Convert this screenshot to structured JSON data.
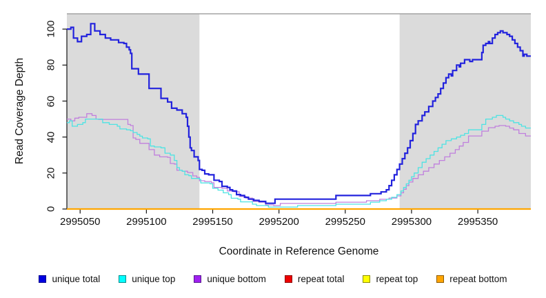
{
  "figure": {
    "background": "#ffffff"
  },
  "axes": {
    "y_title": "Read Coverage Depth",
    "x_title": "Coordinate in Reference Genome",
    "x_tick_values": [
      2995050,
      2995100,
      2995150,
      2995200,
      2995250,
      2995300,
      2995350
    ],
    "x_tick_labels": [
      "2995050",
      "2995100",
      "2995150",
      "2995200",
      "2995250",
      "2995300",
      "2995350"
    ],
    "y_tick_values": [
      0,
      20,
      40,
      60,
      80,
      100
    ],
    "y_tick_labels": [
      "0",
      "20",
      "40",
      "60",
      "80",
      "100"
    ],
    "axis_color": "#111111"
  },
  "chart_data": {
    "type": "line",
    "step": true,
    "title": "",
    "xlabel": "Coordinate in Reference Genome",
    "ylabel": "Read Coverage Depth",
    "xlim": [
      2995040,
      2995390
    ],
    "ylim": [
      0,
      108.5
    ],
    "grid": false,
    "legend_position": "bottom",
    "shaded_regions": [
      {
        "x1": 2995040,
        "x2": 2995140,
        "color": "#dbdbdb"
      },
      {
        "x1": 2995291,
        "x2": 2995390,
        "color": "#dbdbdb"
      }
    ],
    "top_border": {
      "y": 108.5,
      "color": "#a3a3a3",
      "width": 1.5
    },
    "series": [
      {
        "name": "unique total",
        "color": "#2222dd",
        "line_width": 2.2,
        "draw_order": 6,
        "points": [
          [
            2995040,
            100
          ],
          [
            2995043,
            101
          ],
          [
            2995045,
            95
          ],
          [
            2995048,
            93
          ],
          [
            2995051,
            96
          ],
          [
            2995055,
            97
          ],
          [
            2995058,
            103
          ],
          [
            2995061,
            99
          ],
          [
            2995065,
            97
          ],
          [
            2995069,
            95
          ],
          [
            2995073,
            94
          ],
          [
            2995077,
            94
          ],
          [
            2995079,
            92.5
          ],
          [
            2995083,
            92
          ],
          [
            2995085,
            90
          ],
          [
            2995087,
            88.5
          ],
          [
            2995088,
            86.5
          ],
          [
            2995089,
            78
          ],
          [
            2995094,
            75
          ],
          [
            2995102,
            67
          ],
          [
            2995111,
            61.5
          ],
          [
            2995116,
            59.5
          ],
          [
            2995119,
            56
          ],
          [
            2995123,
            55
          ],
          [
            2995127,
            53
          ],
          [
            2995130,
            51
          ],
          [
            2995131,
            46
          ],
          [
            2995132,
            40
          ],
          [
            2995133,
            34
          ],
          [
            2995134,
            32.5
          ],
          [
            2995136,
            29
          ],
          [
            2995139,
            27
          ],
          [
            2995140,
            22
          ],
          [
            2995142,
            21.5
          ],
          [
            2995144,
            19.5
          ],
          [
            2995147,
            19
          ],
          [
            2995151,
            16
          ],
          [
            2995155,
            15.3
          ],
          [
            2995157,
            12.6
          ],
          [
            2995161,
            12
          ],
          [
            2995163,
            10.7
          ],
          [
            2995165,
            10
          ],
          [
            2995168,
            8
          ],
          [
            2995171,
            7.5
          ],
          [
            2995174,
            6.5
          ],
          [
            2995177,
            5.5
          ],
          [
            2995181,
            4.8
          ],
          [
            2995185,
            4.2
          ],
          [
            2995190,
            3.2
          ],
          [
            2995197,
            5.5
          ],
          [
            2995243,
            7.5
          ],
          [
            2995269,
            8.5
          ],
          [
            2995277,
            9.5
          ],
          [
            2995281,
            10.7
          ],
          [
            2995283,
            13
          ],
          [
            2995285,
            16
          ],
          [
            2995287,
            19
          ],
          [
            2995289,
            22
          ],
          [
            2995291,
            25
          ],
          [
            2995293,
            28
          ],
          [
            2995295,
            31
          ],
          [
            2995297,
            34
          ],
          [
            2995299,
            38
          ],
          [
            2995301,
            42
          ],
          [
            2995303,
            47
          ],
          [
            2995305,
            49
          ],
          [
            2995308,
            52
          ],
          [
            2995310,
            54
          ],
          [
            2995313,
            57
          ],
          [
            2995316,
            60
          ],
          [
            2995318,
            62
          ],
          [
            2995320,
            64
          ],
          [
            2995322,
            67
          ],
          [
            2995324,
            70
          ],
          [
            2995326,
            73
          ],
          [
            2995328,
            75
          ],
          [
            2995330,
            74
          ],
          [
            2995331,
            77
          ],
          [
            2995334,
            80
          ],
          [
            2995336,
            79
          ],
          [
            2995337,
            81
          ],
          [
            2995340,
            83
          ],
          [
            2995343,
            83
          ],
          [
            2995344,
            82
          ],
          [
            2995346,
            83
          ],
          [
            2995353,
            87
          ],
          [
            2995354,
            91
          ],
          [
            2995356,
            92
          ],
          [
            2995358,
            93
          ],
          [
            2995359,
            92
          ],
          [
            2995361,
            95
          ],
          [
            2995363,
            97
          ],
          [
            2995365,
            98
          ],
          [
            2995367,
            99
          ],
          [
            2995369,
            98
          ],
          [
            2995372,
            97
          ],
          [
            2995374,
            96
          ],
          [
            2995376,
            94
          ],
          [
            2995378,
            92
          ],
          [
            2995380,
            90
          ],
          [
            2995382,
            88
          ],
          [
            2995384,
            85
          ],
          [
            2995385,
            86
          ],
          [
            2995387,
            85
          ],
          [
            2995390,
            85
          ]
        ]
      },
      {
        "name": "unique top",
        "color": "#4de3e3",
        "line_width": 1.3,
        "draw_order": 5,
        "points": [
          [
            2995040,
            48
          ],
          [
            2995042,
            49
          ],
          [
            2995044,
            46
          ],
          [
            2995048,
            47
          ],
          [
            2995052,
            48
          ],
          [
            2995054,
            50
          ],
          [
            2995065,
            50
          ],
          [
            2995067,
            48
          ],
          [
            2995072,
            47
          ],
          [
            2995078,
            46
          ],
          [
            2995080,
            44.5
          ],
          [
            2995085,
            44
          ],
          [
            2995088,
            43.5
          ],
          [
            2995090,
            42.5
          ],
          [
            2995093,
            41.5
          ],
          [
            2995095,
            40.5
          ],
          [
            2995097,
            39.5
          ],
          [
            2995101,
            39
          ],
          [
            2995103,
            35
          ],
          [
            2995106,
            34.5
          ],
          [
            2995111,
            34
          ],
          [
            2995114,
            31
          ],
          [
            2995118,
            30
          ],
          [
            2995121,
            27
          ],
          [
            2995123,
            23
          ],
          [
            2995125,
            21.5
          ],
          [
            2995127,
            21
          ],
          [
            2995129,
            19
          ],
          [
            2995132,
            18.5
          ],
          [
            2995134,
            17
          ],
          [
            2995140,
            16.5
          ],
          [
            2995141,
            14.5
          ],
          [
            2995148,
            14
          ],
          [
            2995150,
            11.5
          ],
          [
            2995154,
            10.5
          ],
          [
            2995158,
            9
          ],
          [
            2995162,
            8
          ],
          [
            2995164,
            6
          ],
          [
            2995169,
            5.5
          ],
          [
            2995171,
            4
          ],
          [
            2995180,
            2.7
          ],
          [
            2995183,
            1.9
          ],
          [
            2995192,
            1.1
          ],
          [
            2995214,
            1.9
          ],
          [
            2995243,
            2.7
          ],
          [
            2995269,
            3.8
          ],
          [
            2995276,
            4.6
          ],
          [
            2995281,
            5.4
          ],
          [
            2995285,
            6.5
          ],
          [
            2995289,
            8
          ],
          [
            2995292,
            10
          ],
          [
            2995294,
            12
          ],
          [
            2995296,
            14
          ],
          [
            2995298,
            16
          ],
          [
            2995300,
            18
          ],
          [
            2995302,
            20
          ],
          [
            2995305,
            23
          ],
          [
            2995308,
            26
          ],
          [
            2995311,
            28
          ],
          [
            2995314,
            30
          ],
          [
            2995317,
            32
          ],
          [
            2995320,
            34
          ],
          [
            2995323,
            36
          ],
          [
            2995326,
            38
          ],
          [
            2995330,
            39
          ],
          [
            2995334,
            40
          ],
          [
            2995337,
            41
          ],
          [
            2995340,
            42
          ],
          [
            2995343,
            44
          ],
          [
            2995353,
            47
          ],
          [
            2995356,
            50
          ],
          [
            2995361,
            51
          ],
          [
            2995364,
            52
          ],
          [
            2995369,
            51
          ],
          [
            2995371,
            50
          ],
          [
            2995374,
            49
          ],
          [
            2995377,
            48
          ],
          [
            2995381,
            47
          ],
          [
            2995383,
            46
          ],
          [
            2995386,
            45
          ],
          [
            2995390,
            45
          ]
        ]
      },
      {
        "name": "unique bottom",
        "color": "#c07fdd",
        "line_width": 1.3,
        "draw_order": 4,
        "points": [
          [
            2995040,
            50
          ],
          [
            2995043,
            49
          ],
          [
            2995046,
            50.5
          ],
          [
            2995049,
            51
          ],
          [
            2995055,
            53
          ],
          [
            2995059,
            52
          ],
          [
            2995062,
            50
          ],
          [
            2995064,
            49.8
          ],
          [
            2995085,
            49.8
          ],
          [
            2995086,
            47
          ],
          [
            2995088,
            46.4
          ],
          [
            2995090,
            39.5
          ],
          [
            2995092,
            38.7
          ],
          [
            2995095,
            36.5
          ],
          [
            2995102,
            33
          ],
          [
            2995106,
            30
          ],
          [
            2995110,
            29
          ],
          [
            2995116,
            28.7
          ],
          [
            2995118,
            25.3
          ],
          [
            2995121,
            25
          ],
          [
            2995123,
            21.5
          ],
          [
            2995127,
            21
          ],
          [
            2995131,
            20.3
          ],
          [
            2995135,
            18.4
          ],
          [
            2995138,
            17.6
          ],
          [
            2995140,
            15.7
          ],
          [
            2995144,
            15.3
          ],
          [
            2995149,
            14.6
          ],
          [
            2995151,
            12
          ],
          [
            2995157,
            11.5
          ],
          [
            2995161,
            10
          ],
          [
            2995166,
            9.6
          ],
          [
            2995170,
            7
          ],
          [
            2995175,
            6.1
          ],
          [
            2995180,
            4.2
          ],
          [
            2995185,
            3.8
          ],
          [
            2995190,
            2.3
          ],
          [
            2995196,
            1.9
          ],
          [
            2995201,
            3.1
          ],
          [
            2995243,
            3.8
          ],
          [
            2995266,
            4.6
          ],
          [
            2995276,
            5.4
          ],
          [
            2995283,
            6.1
          ],
          [
            2995289,
            7.3
          ],
          [
            2995292,
            9
          ],
          [
            2995294,
            11
          ],
          [
            2995296,
            13
          ],
          [
            2995298,
            15
          ],
          [
            2995301,
            17
          ],
          [
            2995305,
            19
          ],
          [
            2995309,
            21
          ],
          [
            2995313,
            23
          ],
          [
            2995317,
            25
          ],
          [
            2995321,
            27
          ],
          [
            2995325,
            29
          ],
          [
            2995329,
            31
          ],
          [
            2995333,
            33
          ],
          [
            2995336,
            35
          ],
          [
            2995339,
            37
          ],
          [
            2995343,
            40.6
          ],
          [
            2995353,
            43.3
          ],
          [
            2995358,
            45.2
          ],
          [
            2995363,
            46
          ],
          [
            2995366,
            46.4
          ],
          [
            2995371,
            46
          ],
          [
            2995374,
            45
          ],
          [
            2995377,
            44
          ],
          [
            2995381,
            42
          ],
          [
            2995386,
            40.6
          ],
          [
            2995390,
            40.6
          ]
        ]
      },
      {
        "name": "repeat total",
        "color": "#dd0000",
        "line_width": 1.4,
        "draw_order": 1,
        "points": [
          [
            2995040,
            0
          ],
          [
            2995390,
            0
          ]
        ]
      },
      {
        "name": "repeat top",
        "color": "#ffff00",
        "line_width": 1.4,
        "draw_order": 2,
        "points": [
          [
            2995040,
            0
          ],
          [
            2995390,
            0
          ]
        ]
      },
      {
        "name": "repeat bottom",
        "color": "#ffa500",
        "line_width": 2.2,
        "draw_order": 3,
        "points": [
          [
            2995040,
            0
          ],
          [
            2995390,
            0
          ]
        ]
      }
    ]
  },
  "legend": {
    "items": [
      {
        "label": "unique total",
        "fill": "#0000e0",
        "border": "#00008b"
      },
      {
        "label": "unique top",
        "fill": "#00ffff",
        "border": "#008b8b"
      },
      {
        "label": "unique bottom",
        "fill": "#a020f0",
        "border": "#551a8b"
      },
      {
        "label": "repeat total",
        "fill": "#ee0000",
        "border": "#8b0000"
      },
      {
        "label": "repeat top",
        "fill": "#ffff00",
        "border": "#8b8b00"
      },
      {
        "label": "repeat bottom",
        "fill": "#ffa500",
        "border": "#8b5a00"
      }
    ]
  }
}
